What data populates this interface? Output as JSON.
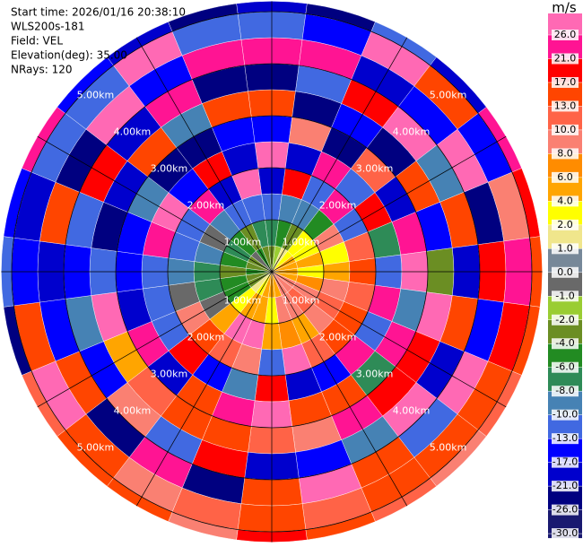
{
  "chart_data": {
    "type": "ppi",
    "info": [
      "Start time: 2026/01/16 20:38:10",
      "WLS200s-181",
      "Field: VEL",
      "Elevation(deg): 35.00",
      "NRays: 120"
    ],
    "colorbar_label": "m/s",
    "colorbar_ticks": [
      {
        "value": 26,
        "label": "26.0"
      },
      {
        "value": 21,
        "label": "21.0"
      },
      {
        "value": 17,
        "label": "17.0"
      },
      {
        "value": 13,
        "label": "13.0"
      },
      {
        "value": 10,
        "label": "10.0"
      },
      {
        "value": 8,
        "label": "8.0"
      },
      {
        "value": 6,
        "label": "6.0"
      },
      {
        "value": 4,
        "label": "4.0"
      },
      {
        "value": 2,
        "label": "2.0"
      },
      {
        "value": 1,
        "label": "1.0"
      },
      {
        "value": 0,
        "label": "0.0"
      },
      {
        "value": -1,
        "label": "-1.0"
      },
      {
        "value": -2,
        "label": "-2.0"
      },
      {
        "value": -4,
        "label": "-4.0"
      },
      {
        "value": -6,
        "label": "-6.0"
      },
      {
        "value": -8,
        "label": "-8.0"
      },
      {
        "value": -10,
        "label": "-10.0"
      },
      {
        "value": -13,
        "label": "-13.0"
      },
      {
        "value": -17,
        "label": "-17.0"
      },
      {
        "value": -21,
        "label": "-21.0"
      },
      {
        "value": -26,
        "label": "-26.0"
      },
      {
        "value": -30,
        "label": "-30.0"
      }
    ],
    "colors": [
      "#ff69b4",
      "#ff1493",
      "#ff0000",
      "#ff4500",
      "#ff6347",
      "#fa8072",
      "#ff8c00",
      "#ffa500",
      "#ffff00",
      "#f0e68c",
      "#778899",
      "#696969",
      "#9acd32",
      "#6b8e23",
      "#228b22",
      "#2e8b57",
      "#4682b4",
      "#4169e1",
      "#0000ff",
      "#0000cd",
      "#000080",
      "#191970"
    ],
    "rings": [
      {
        "value": 1,
        "label": "1.00km"
      },
      {
        "value": 2,
        "label": "2.00km"
      },
      {
        "value": 3,
        "label": "3.00km"
      },
      {
        "value": 4,
        "label": "4.00km"
      },
      {
        "value": 5,
        "label": "5.00km"
      }
    ],
    "azimuths": [
      0,
      15,
      30,
      45,
      60,
      75,
      90,
      105,
      120,
      135,
      150,
      165,
      180,
      195,
      210,
      225,
      240,
      255,
      270,
      285,
      300,
      315,
      330,
      345
    ],
    "range_edges_km": [
      0,
      0.5,
      1,
      1.5,
      2,
      2.5,
      3,
      3.5,
      4,
      4.5,
      5,
      5.2
    ],
    "values": [
      [
        -4,
        -8,
        -13,
        -21,
        26,
        -17,
        13,
        -26,
        21,
        -13,
        -21
      ],
      [
        -2,
        -6,
        -10,
        17,
        -21,
        8,
        -26,
        -13,
        21,
        -17,
        -26
      ],
      [
        1,
        -4,
        -10,
        -13,
        21,
        -26,
        -17,
        17,
        -21,
        26,
        -13
      ],
      [
        3,
        2,
        -6,
        21,
        -13,
        10,
        -26,
        26,
        -17,
        13,
        -21
      ],
      [
        5,
        3,
        8,
        -13,
        17,
        -21,
        13,
        -10,
        26,
        -17,
        21
      ],
      [
        5,
        5,
        3,
        10,
        -8,
        21,
        -17,
        13,
        -26,
        8,
        17
      ],
      [
        5,
        3,
        5,
        13,
        -13,
        26,
        -4,
        -21,
        17,
        21,
        13
      ],
      [
        5,
        7,
        9,
        11,
        21,
        -10,
        26,
        13,
        -17,
        17,
        15
      ],
      [
        9,
        9,
        11,
        13,
        -13,
        21,
        17,
        -21,
        26,
        13,
        11
      ],
      [
        9,
        11,
        9,
        15,
        21,
        -8,
        17,
        26,
        -13,
        15,
        9
      ],
      [
        9,
        9,
        5,
        11,
        -17,
        13,
        21,
        -10,
        15,
        13,
        11
      ],
      [
        5,
        9,
        7,
        26,
        -21,
        15,
        9,
        -17,
        26,
        11,
        15
      ],
      [
        5,
        3,
        5,
        -13,
        17,
        26,
        11,
        -21,
        13,
        15,
        17
      ],
      [
        5,
        5,
        26,
        9,
        -10,
        21,
        13,
        17,
        -26,
        11,
        9
      ],
      [
        3,
        5,
        26,
        11,
        -17,
        13,
        15,
        -13,
        21,
        9,
        13
      ],
      [
        1,
        3,
        5,
        15,
        17,
        -21,
        11,
        9,
        -26,
        13,
        15
      ],
      [
        -3,
        -5,
        -1,
        9,
        -13,
        21,
        5,
        -17,
        13,
        26,
        11
      ],
      [
        -3,
        -5,
        -7,
        -1,
        -13,
        -21,
        26,
        -10,
        -17,
        13,
        -26
      ],
      [
        -5,
        -3,
        -7,
        -9,
        -11,
        -15,
        -13,
        -17,
        -21,
        -15,
        -11
      ],
      [
        -3,
        -5,
        -9,
        -13,
        21,
        -17,
        -26,
        -11,
        13,
        -21,
        -15
      ],
      [
        -3,
        -7,
        -1,
        -13,
        26,
        -10,
        -21,
        17,
        -26,
        -13,
        21
      ],
      [
        -1,
        -5,
        -10,
        21,
        -17,
        -26,
        13,
        -21,
        26,
        -13,
        -17
      ],
      [
        -5,
        -3,
        -13,
        -21,
        17,
        -26,
        -10,
        21,
        -17,
        26,
        -21
      ],
      [
        -3,
        -7,
        -13,
        26,
        -21,
        -17,
        13,
        -26,
        21,
        -13,
        -26
      ]
    ]
  }
}
